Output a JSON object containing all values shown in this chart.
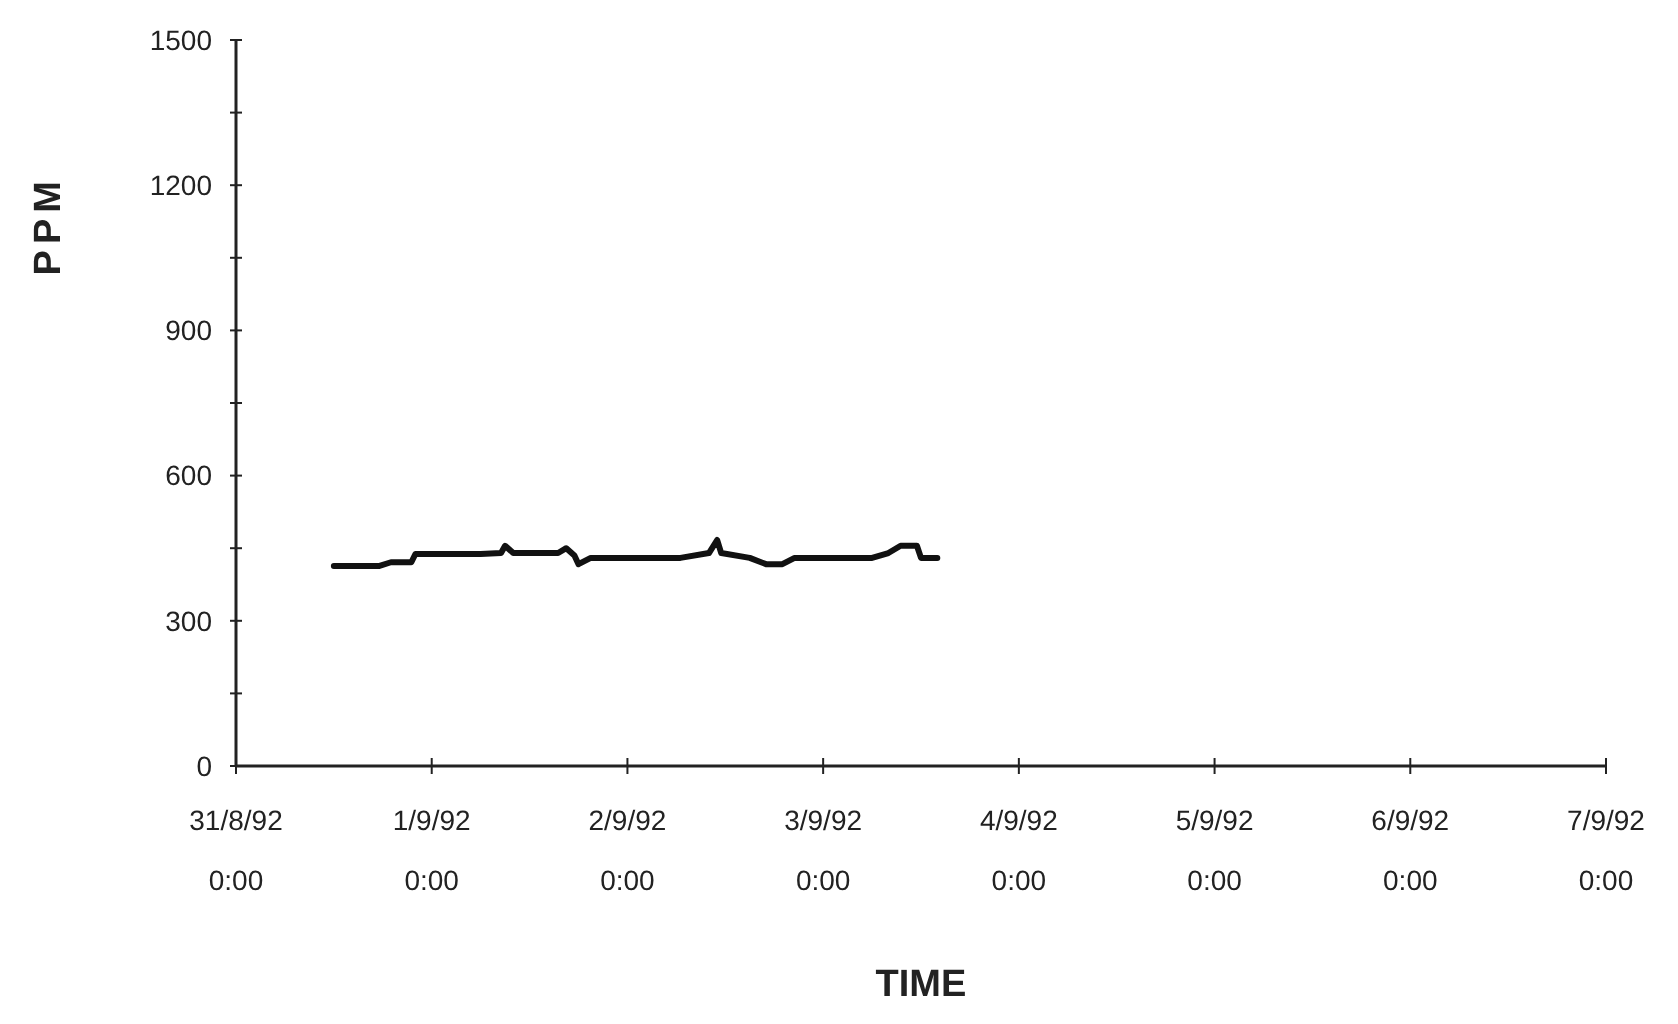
{
  "chart_data": {
    "type": "line",
    "xlabel": "TIME",
    "ylabel": "PPM",
    "xlim": [
      "1992-08-31T00:00",
      "1992-09-07T00:00"
    ],
    "xticks": [
      {
        "value": "1992-08-31T00:00",
        "label": "31/8/92 0:00"
      },
      {
        "value": "1992-09-01T00:00",
        "label": "1/9/92 0:00"
      },
      {
        "value": "1992-09-02T00:00",
        "label": "2/9/92 0:00"
      },
      {
        "value": "1992-09-03T00:00",
        "label": "3/9/92 0:00"
      },
      {
        "value": "1992-09-04T00:00",
        "label": "4/9/92 0:00"
      },
      {
        "value": "1992-09-05T00:00",
        "label": "5/9/92 0:00"
      },
      {
        "value": "1992-09-06T00:00",
        "label": "6/9/92 0:00"
      },
      {
        "value": "1992-09-07T00:00",
        "label": "7/9/92 0:00"
      }
    ],
    "ylim": [
      0,
      1500
    ],
    "yticks": [
      0,
      {
        "value": 150,
        "label": null
      },
      300,
      {
        "value": 450,
        "label": null
      },
      600,
      {
        "value": 750,
        "label": null
      },
      900,
      {
        "value": 1050,
        "label": null
      },
      1200,
      {
        "value": 1350,
        "label": null
      },
      1500
    ],
    "marker": "none",
    "line_style": "solid",
    "x": [
      "1992-08-31T12:00",
      "1992-08-31T17:30",
      "1992-08-31T19:00",
      "1992-08-31T21:30",
      "1992-08-31T22:00",
      "1992-09-01T06:00",
      "1992-09-01T08:30",
      "1992-09-01T09:00",
      "1992-09-01T10:00",
      "1992-09-01T15:30",
      "1992-09-01T16:30",
      "1992-09-01T17:30",
      "1992-09-01T18:00",
      "1992-09-01T19:30",
      "1992-09-02T06:30",
      "1992-09-02T10:00",
      "1992-09-02T11:00",
      "1992-09-02T11:30",
      "1992-09-02T15:00",
      "1992-09-02T17:00",
      "1992-09-02T19:00",
      "1992-09-02T20:30",
      "1992-09-03T06:00",
      "1992-09-03T08:00",
      "1992-09-03T09:30",
      "1992-09-03T11:30",
      "1992-09-03T12:00",
      "1992-09-03T14:00"
    ],
    "series": [
      {
        "color": "#111111",
        "values": [
          413,
          413,
          421,
          421,
          438,
          438,
          440,
          455,
          440,
          440,
          450,
          435,
          417,
          430,
          430,
          440,
          467,
          440,
          430,
          417,
          417,
          430,
          430,
          440,
          455,
          455,
          430,
          430
        ]
      }
    ]
  }
}
